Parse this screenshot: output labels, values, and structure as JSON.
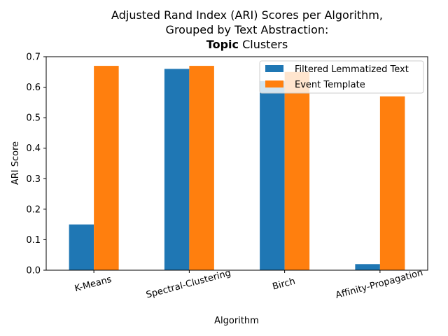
{
  "chart_data": {
    "type": "bar",
    "title_lines": [
      "Adjusted Rand Index (ARI) Scores per Algorithm,",
      "Grouped by Text Abstraction:"
    ],
    "title_bold": "Topic",
    "title_rest": " Clusters",
    "xlabel": "Algorithm",
    "ylabel": "ARI Score",
    "categories": [
      "K-Means",
      "Spectral-Clustering",
      "Birch",
      "Affinity-Propagation"
    ],
    "series": [
      {
        "name": "Filtered Lemmatized Text",
        "values": [
          0.15,
          0.66,
          0.62,
          0.02
        ],
        "color": "#1f77b4"
      },
      {
        "name": "Event Template",
        "values": [
          0.67,
          0.67,
          0.65,
          0.57
        ],
        "color": "#ff7f0e"
      }
    ],
    "ylim": [
      0,
      0.7
    ],
    "yticks": [
      "0.0",
      "0.1",
      "0.2",
      "0.3",
      "0.4",
      "0.5",
      "0.6",
      "0.7"
    ],
    "legend_position": "top-right",
    "grid": false
  }
}
